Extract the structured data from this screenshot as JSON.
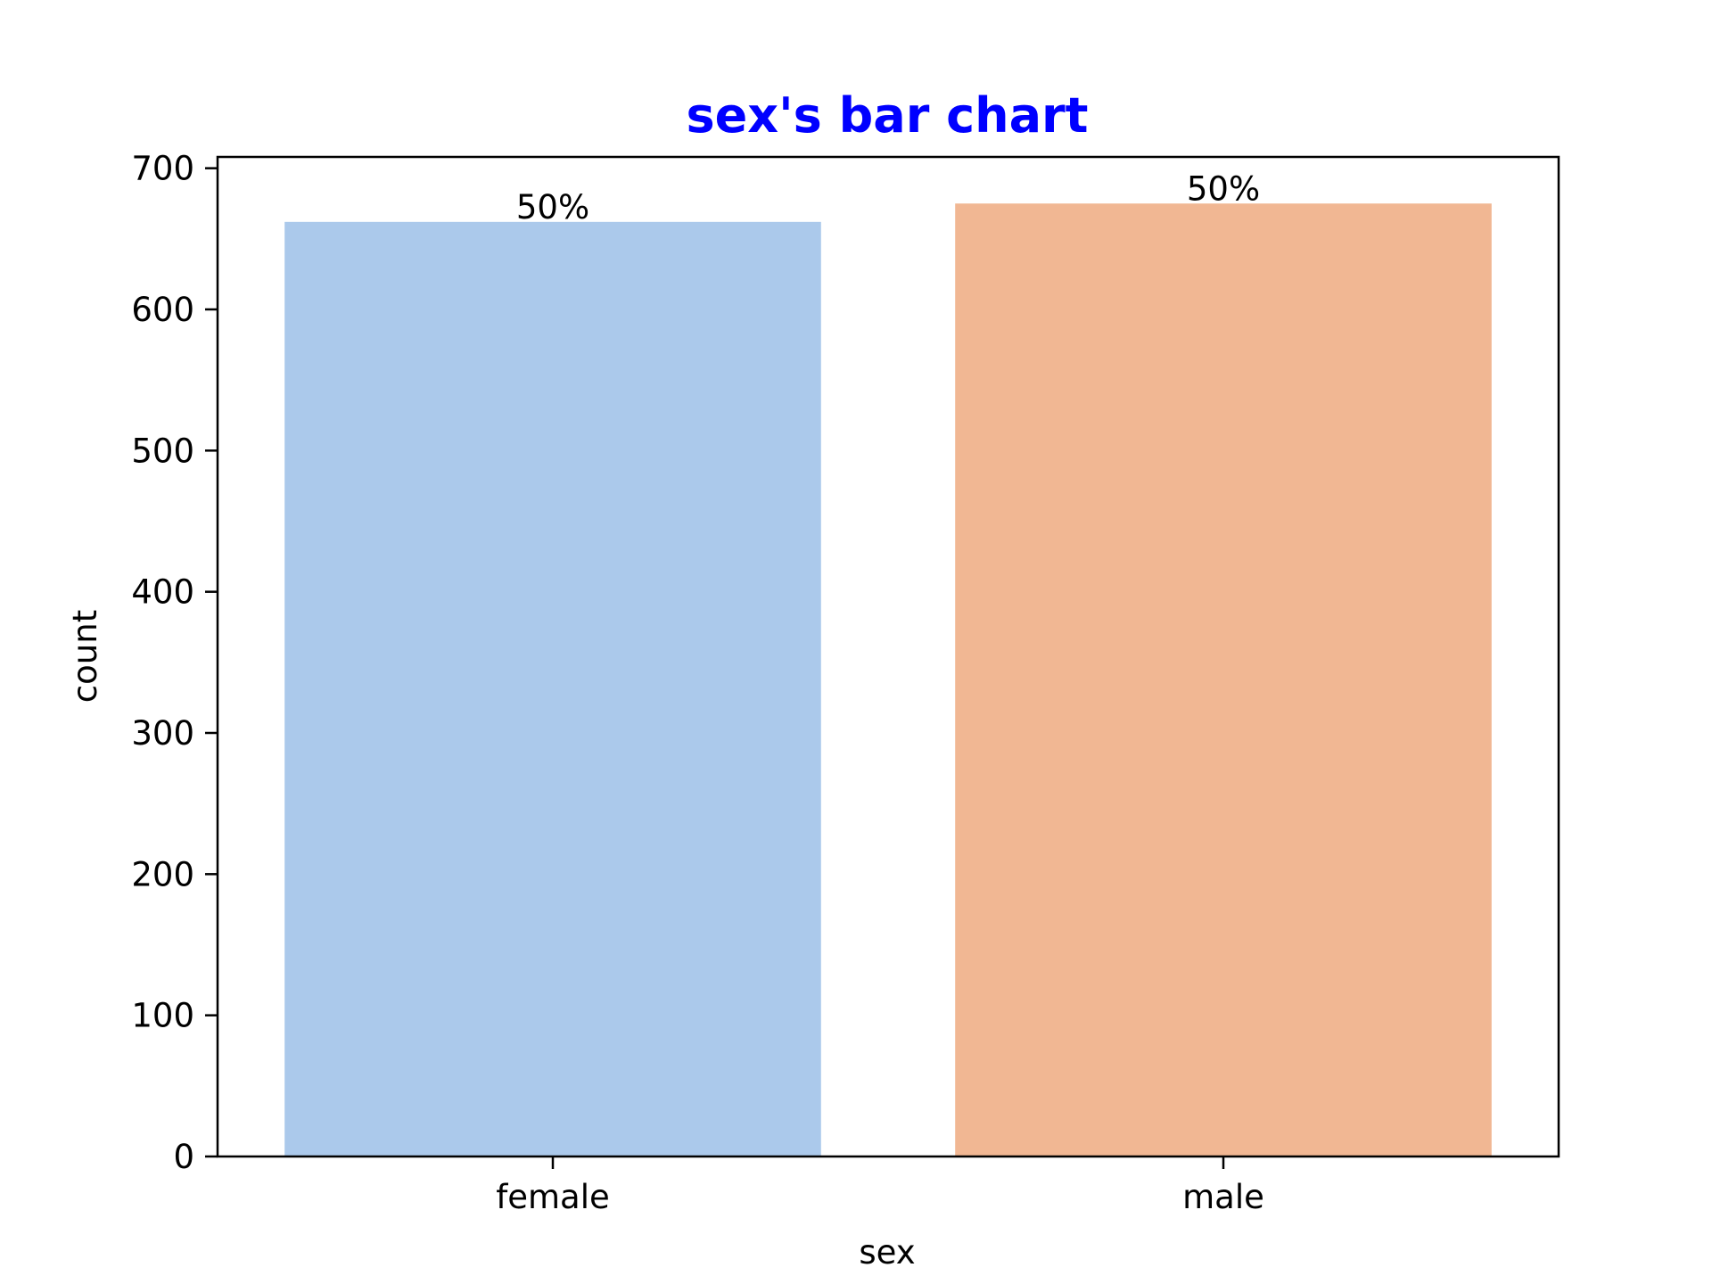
{
  "chart_data": {
    "type": "bar",
    "title": "sex's bar chart",
    "xlabel": "sex",
    "ylabel": "count",
    "categories": [
      "female",
      "male"
    ],
    "values": [
      662,
      675
    ],
    "data_labels": [
      "50%",
      "50%"
    ],
    "ylim": [
      0,
      708
    ],
    "yticks": [
      0,
      100,
      200,
      300,
      400,
      500,
      600,
      700
    ],
    "grid": false,
    "legend": "none"
  },
  "colors": {
    "title": "#0000ff",
    "bars": [
      "#abc9eb",
      "#f1b793"
    ],
    "axes": "#000000",
    "background": "#ffffff"
  }
}
